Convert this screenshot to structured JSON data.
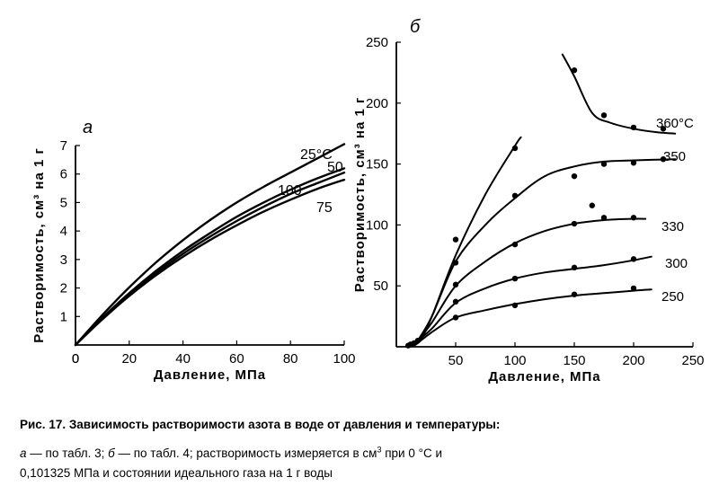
{
  "chart_data": [
    {
      "panel_label": "a",
      "type": "line",
      "xlabel": "Давление, МПа",
      "ylabel": "Растворимость, см³ на 1 г",
      "xlim": [
        0,
        100
      ],
      "ylim": [
        0,
        7
      ],
      "x_ticks": [
        0,
        20,
        40,
        60,
        80,
        100
      ],
      "y_ticks": [
        1,
        2,
        3,
        4,
        5,
        6,
        7
      ],
      "grid": false,
      "series": [
        {
          "name": "25°C",
          "x": [
            0,
            10,
            20,
            30,
            40,
            50,
            60,
            70,
            80,
            90,
            100
          ],
          "y": [
            0,
            1.05,
            2.02,
            2.9,
            3.68,
            4.38,
            5.0,
            5.55,
            6.05,
            6.55,
            7.05
          ]
        },
        {
          "name": "50",
          "x": [
            0,
            10,
            20,
            30,
            40,
            50,
            60,
            70,
            80,
            90,
            100
          ],
          "y": [
            0,
            0.95,
            1.82,
            2.6,
            3.3,
            3.92,
            4.5,
            5.0,
            5.45,
            5.85,
            6.2
          ]
        },
        {
          "name": "100",
          "x": [
            0,
            10,
            20,
            30,
            40,
            50,
            60,
            70,
            80,
            90,
            100
          ],
          "y": [
            0,
            0.92,
            1.76,
            2.52,
            3.2,
            3.8,
            4.35,
            4.85,
            5.3,
            5.68,
            6.05
          ]
        },
        {
          "name": "75",
          "x": [
            0,
            10,
            20,
            30,
            40,
            50,
            60,
            70,
            80,
            90,
            100
          ],
          "y": [
            0,
            0.9,
            1.72,
            2.45,
            3.1,
            3.68,
            4.2,
            4.68,
            5.1,
            5.48,
            5.8
          ]
        }
      ]
    },
    {
      "panel_label": "б",
      "type": "line",
      "xlabel": "Давление, МПа",
      "ylabel": "Растворимость, см³ на 1 г",
      "xlim": [
        0,
        250
      ],
      "ylim": [
        0,
        250
      ],
      "x_ticks": [
        50,
        100,
        150,
        200,
        250
      ],
      "y_ticks": [
        50,
        100,
        150,
        200,
        250
      ],
      "grid": false,
      "series": [
        {
          "name": "360°C",
          "x": [
            140,
            150,
            165,
            180,
            200,
            220,
            235
          ],
          "y": [
            240,
            222,
            192,
            184,
            179,
            176,
            175
          ],
          "points_x": [
            150,
            175,
            200,
            225
          ],
          "points_y": [
            227,
            190,
            180,
            179
          ]
        },
        {
          "name": "350",
          "x": [
            18,
            30,
            50,
            75,
            100,
            125,
            150,
            175,
            200,
            235
          ],
          "y": [
            5,
            25,
            70,
            100,
            122,
            140,
            148,
            152,
            153,
            154
          ],
          "points_x": [
            50,
            100,
            150,
            175,
            200,
            225,
            165
          ],
          "points_y": [
            69,
            124,
            140,
            150,
            151,
            154,
            116
          ]
        },
        {
          "name": "330",
          "x": [
            18,
            30,
            50,
            75,
            100,
            125,
            150,
            175,
            200,
            210
          ],
          "y": [
            5,
            20,
            50,
            70,
            85,
            95,
            101,
            104,
            105,
            105
          ],
          "points_x": [
            50,
            100,
            150,
            175,
            200
          ],
          "points_y": [
            51,
            84,
            101,
            106,
            106
          ]
        },
        {
          "name": "300",
          "x": [
            18,
            30,
            50,
            75,
            100,
            125,
            150,
            175,
            200,
            215
          ],
          "y": [
            5,
            15,
            36,
            48,
            56,
            61,
            64,
            67,
            71,
            74
          ],
          "points_x": [
            50,
            100,
            150,
            200
          ],
          "points_y": [
            37,
            56,
            65,
            72
          ]
        },
        {
          "name": "250",
          "x": [
            18,
            30,
            50,
            75,
            100,
            125,
            150,
            175,
            200,
            215
          ],
          "y": [
            3,
            12,
            24,
            30,
            35,
            39,
            42,
            44,
            46,
            47
          ],
          "points_x": [
            50,
            100,
            150,
            200
          ],
          "points_y": [
            24,
            34,
            43,
            48
          ]
        },
        {
          "name": "",
          "x": [
            12,
            20,
            30,
            50,
            75,
            100,
            105
          ],
          "y": [
            0,
            5,
            25,
            75,
            125,
            165,
            172
          ],
          "points_x": [
            10,
            12,
            15,
            18,
            50,
            100
          ],
          "points_y": [
            1,
            2,
            3,
            5,
            88,
            163
          ]
        }
      ]
    }
  ],
  "caption": {
    "title": "Рис. 17. Зависимость растворимости азота в воде от давления и температуры:",
    "line1_a": "а",
    "line1_a_text": " — по табл. 3;  ",
    "line1_b": "б",
    "line1_b_text": " — по табл. 4;  растворимость измеряется в см",
    "line1_sup": "3",
    "line1_end": " при 0 °С и",
    "line2": "0,101325 МПа и состоянии идеального газа на 1 г воды"
  }
}
